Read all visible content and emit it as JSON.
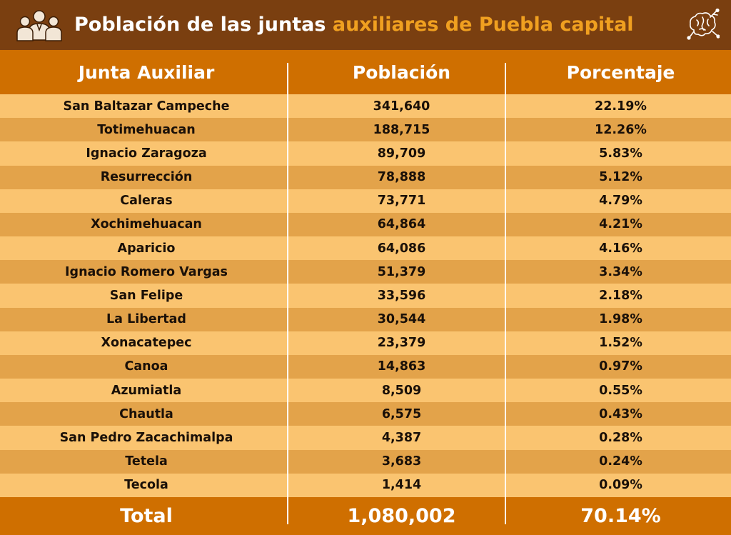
{
  "title": {
    "part1": "Población de las juntas ",
    "part2": "auxiliares de Puebla capital"
  },
  "colors": {
    "title_bar": "#7a3f10",
    "header": "#cf6f00",
    "accent": "#f0a020",
    "row_light": "#fac470",
    "row_dark": "#e2a148"
  },
  "icons": {
    "left": "people-group-icon",
    "right": "brain-circuit-icon"
  },
  "columns": [
    "Junta Auxiliar",
    "Población",
    "Porcentaje"
  ],
  "rows": [
    {
      "junta": "San Baltazar Campeche",
      "poblacion": "341,640",
      "porcentaje": "22.19%"
    },
    {
      "junta": "Totimehuacan",
      "poblacion": "188,715",
      "porcentaje": "12.26%"
    },
    {
      "junta": "Ignacio Zaragoza",
      "poblacion": "89,709",
      "porcentaje": "5.83%"
    },
    {
      "junta": "Resurrección",
      "poblacion": "78,888",
      "porcentaje": "5.12%"
    },
    {
      "junta": "Caleras",
      "poblacion": "73,771",
      "porcentaje": "4.79%"
    },
    {
      "junta": "Xochimehuacan",
      "poblacion": "64,864",
      "porcentaje": "4.21%"
    },
    {
      "junta": "Aparicio",
      "poblacion": "64,086",
      "porcentaje": "4.16%"
    },
    {
      "junta": "Ignacio Romero Vargas",
      "poblacion": "51,379",
      "porcentaje": "3.34%"
    },
    {
      "junta": "San Felipe",
      "poblacion": "33,596",
      "porcentaje": "2.18%"
    },
    {
      "junta": "La Libertad",
      "poblacion": "30,544",
      "porcentaje": "1.98%"
    },
    {
      "junta": "Xonacatepec",
      "poblacion": "23,379",
      "porcentaje": "1.52%"
    },
    {
      "junta": "Canoa",
      "poblacion": "14,863",
      "porcentaje": "0.97%"
    },
    {
      "junta": "Azumiatla",
      "poblacion": "8,509",
      "porcentaje": "0.55%"
    },
    {
      "junta": "Chautla",
      "poblacion": "6,575",
      "porcentaje": "0.43%"
    },
    {
      "junta": "San Pedro Zacachimalpa",
      "poblacion": "4,387",
      "porcentaje": "0.28%"
    },
    {
      "junta": "Tetela",
      "poblacion": "3,683",
      "porcentaje": "0.24%"
    },
    {
      "junta": "Tecola",
      "poblacion": "1,414",
      "porcentaje": "0.09%"
    }
  ],
  "total": {
    "label": "Total",
    "poblacion": "1,080,002",
    "porcentaje": "70.14%"
  }
}
